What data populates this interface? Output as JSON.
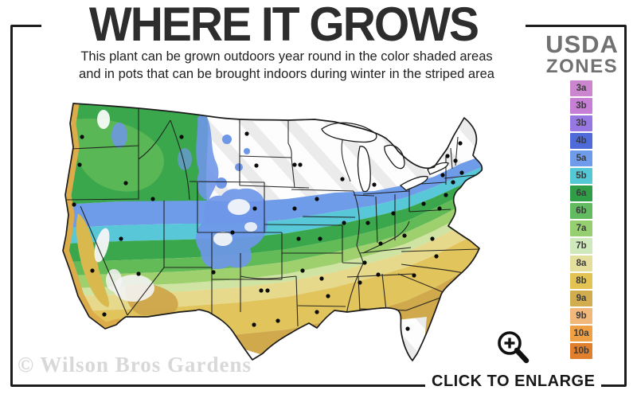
{
  "header": {
    "title": "WHERE IT GROWS",
    "subtitle_line1": "This plant can be grown outdoors year round in the color shaded areas",
    "subtitle_line2": "and in pots that can be brought indoors during winter in the striped area"
  },
  "legend": {
    "heading_line1": "USDA",
    "heading_line2": "ZONES",
    "zones": [
      {
        "label": "3a",
        "color": "#cc85cf"
      },
      {
        "label": "3b",
        "color": "#c77fd6"
      },
      {
        "label": "3b",
        "color": "#9778e3"
      },
      {
        "label": "4b",
        "color": "#4f6ad9"
      },
      {
        "label": "5a",
        "color": "#6e9ceb"
      },
      {
        "label": "5b",
        "color": "#55c8d5"
      },
      {
        "label": "6a",
        "color": "#2f9e47"
      },
      {
        "label": "6b",
        "color": "#62bb60"
      },
      {
        "label": "7a",
        "color": "#96cf70"
      },
      {
        "label": "7b",
        "color": "#cfe9bd"
      },
      {
        "label": "8a",
        "color": "#e5df9d"
      },
      {
        "label": "8b",
        "color": "#e2c353"
      },
      {
        "label": "9a",
        "color": "#d1ad4e"
      },
      {
        "label": "9b",
        "color": "#f2b87b"
      },
      {
        "label": "10a",
        "color": "#efa044"
      },
      {
        "label": "10b",
        "color": "#e07f2e"
      }
    ]
  },
  "map": {
    "band_colors": [
      "#6f9ce8",
      "#58c7d8",
      "#3aa74d",
      "#63bb58",
      "#9fd06e",
      "#cfe3a2",
      "#e6d98b",
      "#e2c45c",
      "#d0a94c"
    ],
    "stripe_colors": {
      "base": "#fdfdfd",
      "stripe": "#ebebeb"
    },
    "outline_color": "#1b1b1b",
    "dot_color": "#0b0b0b",
    "city_dots": [
      [
        103,
        172
      ],
      [
        100,
        207
      ],
      [
        158,
        230
      ],
      [
        228,
        172
      ],
      [
        310,
        168
      ],
      [
        322,
        208
      ],
      [
        370,
        207
      ],
      [
        377,
        207
      ],
      [
        430,
        225
      ],
      [
        470,
        232
      ],
      [
        152,
        300
      ],
      [
        93,
        257
      ],
      [
        116,
        340
      ],
      [
        131,
        395
      ],
      [
        192,
        250
      ],
      [
        320,
        262
      ],
      [
        292,
        292
      ],
      [
        174,
        344
      ],
      [
        268,
        342
      ],
      [
        370,
        262
      ],
      [
        375,
        300
      ],
      [
        380,
        340
      ],
      [
        328,
        365
      ],
      [
        336,
        365
      ],
      [
        319,
        408
      ],
      [
        349,
        403
      ],
      [
        398,
        250
      ],
      [
        402,
        300
      ],
      [
        404,
        350
      ],
      [
        398,
        392
      ],
      [
        432,
        280
      ],
      [
        412,
        372
      ],
      [
        462,
        280
      ],
      [
        478,
        306
      ],
      [
        458,
        330
      ],
      [
        452,
        355
      ],
      [
        494,
        268
      ],
      [
        508,
        296
      ],
      [
        475,
        345
      ],
      [
        520,
        346
      ],
      [
        543,
        300
      ],
      [
        548,
        322
      ],
      [
        512,
        413
      ],
      [
        532,
        256
      ],
      [
        556,
        220
      ],
      [
        560,
        245
      ],
      [
        552,
        262
      ],
      [
        562,
        196
      ],
      [
        572,
        202
      ],
      [
        578,
        180
      ],
      [
        580,
        217
      ],
      [
        569,
        229
      ]
    ]
  },
  "footer": {
    "watermark": "© Wilson Bros Gardens",
    "enlarge_label": "CLICK TO ENLARGE",
    "magnifier_icon": "magnifier-plus"
  }
}
